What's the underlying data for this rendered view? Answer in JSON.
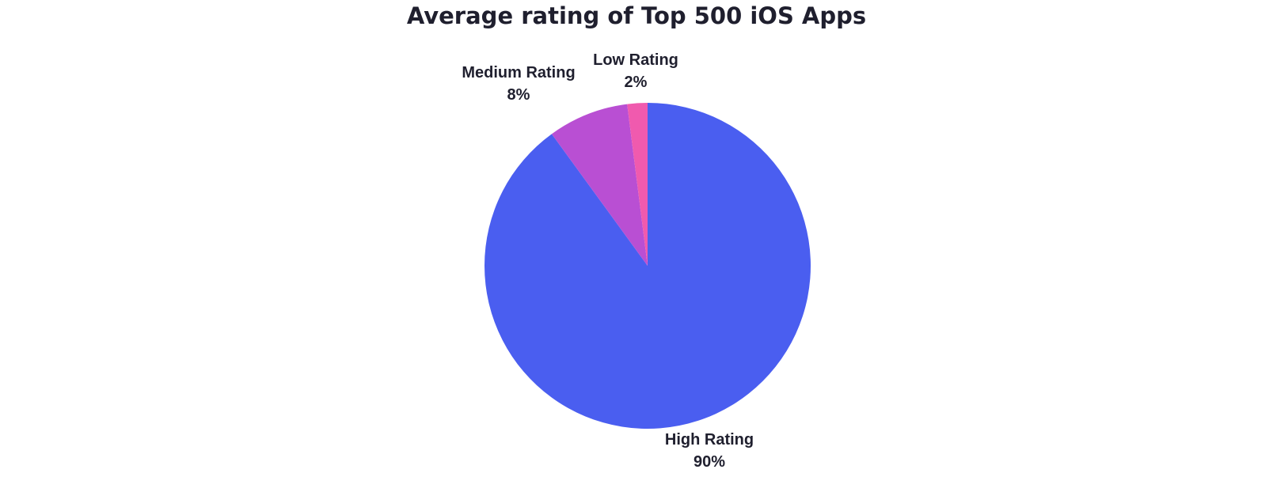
{
  "chart_data": {
    "type": "pie",
    "title": "Average rating of Top 500 iOS Apps",
    "slices": [
      {
        "label": "High Rating",
        "value": 90,
        "value_label": "90%",
        "color": "#4a5ef0"
      },
      {
        "label": "Medium Rating",
        "value": 8,
        "value_label": "8%",
        "color": "#b94fd3"
      },
      {
        "label": "Low Rating",
        "value": 2,
        "value_label": "2%",
        "color": "#f05aae"
      }
    ],
    "start": "top",
    "direction": "clockwise"
  }
}
